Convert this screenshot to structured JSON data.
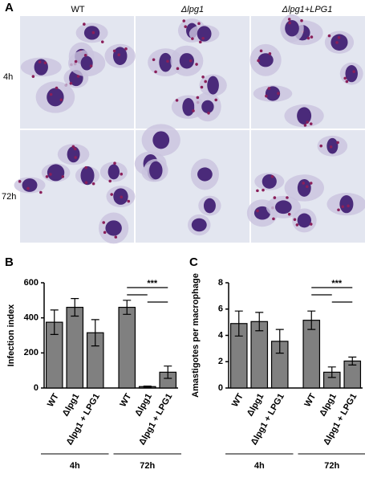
{
  "panel_a": {
    "label": "A",
    "columns": [
      "WT",
      "Δlpg1",
      "Δlpg1+LPG1"
    ],
    "rows": [
      "4h",
      "72h"
    ]
  },
  "chart_data": [
    {
      "type": "bar",
      "panel": "B",
      "ylabel": "Infection index",
      "categories": [
        "WT",
        "Δlpg1",
        "Δlpg1 + LPG1",
        "WT",
        "Δlpg1",
        "Δlpg1 + LPG1"
      ],
      "groups": [
        "4h",
        "72h"
      ],
      "values": [
        375,
        460,
        315,
        460,
        8,
        90
      ],
      "errors": [
        70,
        50,
        75,
        40,
        3,
        35
      ],
      "color": "#808080",
      "ylim": [
        0,
        600
      ],
      "yticks": [
        0,
        200,
        400,
        600
      ],
      "annotation": "***"
    },
    {
      "type": "bar",
      "panel": "C",
      "ylabel": "Amastigotes per macrophage",
      "categories": [
        "WT",
        "Δlpg1",
        "Δlpg1 + LPG1",
        "WT",
        "Δlpg1",
        "Δlpg1 + LPG1"
      ],
      "groups": [
        "4h",
        "72h"
      ],
      "values": [
        4.9,
        5.05,
        3.55,
        5.15,
        1.2,
        2.05
      ],
      "errors": [
        0.95,
        0.7,
        0.9,
        0.7,
        0.4,
        0.3
      ],
      "color": "#808080",
      "ylim": [
        0,
        8
      ],
      "yticks": [
        0,
        2,
        4,
        6,
        8
      ],
      "annotation": "***"
    }
  ]
}
